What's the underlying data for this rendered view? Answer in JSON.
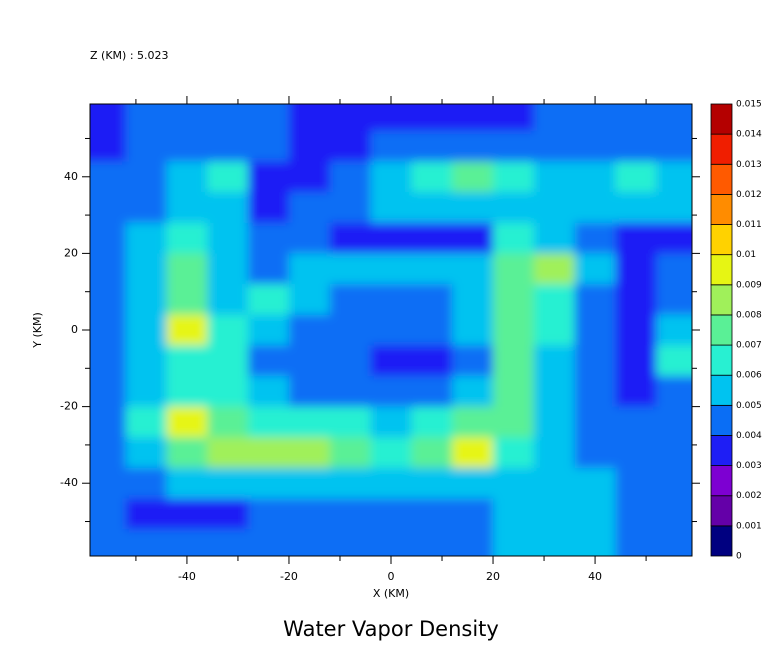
{
  "chart_data": {
    "type": "contour",
    "title": "Water Vapor Density",
    "annotation": "Z (KM) : 5.023",
    "xlabel": "X (KM)",
    "ylabel": "Y (KM)",
    "xlim": [
      -59,
      59
    ],
    "ylim": [
      -59,
      59
    ],
    "xticks": [
      -40,
      -20,
      0,
      20,
      40
    ],
    "yticks": [
      -40,
      -20,
      0,
      20,
      40
    ],
    "xminorticks": [
      -50,
      -30,
      -10,
      10,
      30,
      50
    ],
    "yminorticks": [
      -50,
      -30,
      -10,
      10,
      30,
      50
    ],
    "x": [
      -56,
      -48,
      -40,
      -32,
      -24,
      -16,
      -8,
      0,
      8,
      16,
      24,
      32,
      40,
      48,
      56
    ],
    "y": [
      56,
      48,
      40,
      32,
      24,
      16,
      8,
      0,
      -8,
      -16,
      -24,
      -32,
      -40,
      -48,
      -56
    ],
    "z": [
      [
        0.0035,
        0.0045,
        0.0045,
        0.0045,
        0.0045,
        0.0035,
        0.0035,
        0.0035,
        0.0035,
        0.0035,
        0.0035,
        0.0045,
        0.0045,
        0.0045,
        0.0045
      ],
      [
        0.0035,
        0.0045,
        0.0045,
        0.0045,
        0.0045,
        0.0035,
        0.0035,
        0.0045,
        0.0045,
        0.0045,
        0.0045,
        0.0045,
        0.0045,
        0.0045,
        0.0045
      ],
      [
        0.0045,
        0.0045,
        0.0055,
        0.0065,
        0.0035,
        0.0035,
        0.0045,
        0.0055,
        0.0065,
        0.0075,
        0.0065,
        0.0055,
        0.0055,
        0.0065,
        0.0055
      ],
      [
        0.0045,
        0.0045,
        0.0055,
        0.0055,
        0.0035,
        0.0045,
        0.0045,
        0.0055,
        0.0055,
        0.0055,
        0.0055,
        0.0055,
        0.0055,
        0.0055,
        0.0055
      ],
      [
        0.0045,
        0.0055,
        0.0065,
        0.0055,
        0.0045,
        0.0045,
        0.0035,
        0.0035,
        0.0035,
        0.0035,
        0.0065,
        0.0055,
        0.0045,
        0.0035,
        0.0035
      ],
      [
        0.0045,
        0.0055,
        0.0075,
        0.0055,
        0.0045,
        0.0055,
        0.0055,
        0.0055,
        0.0055,
        0.0055,
        0.0075,
        0.0085,
        0.0055,
        0.0035,
        0.0045
      ],
      [
        0.0045,
        0.0055,
        0.0075,
        0.0055,
        0.0065,
        0.0055,
        0.0045,
        0.0045,
        0.0045,
        0.0055,
        0.0075,
        0.0065,
        0.0045,
        0.0035,
        0.0045
      ],
      [
        0.0045,
        0.0055,
        0.0095,
        0.0065,
        0.0055,
        0.0045,
        0.0045,
        0.0045,
        0.0045,
        0.0055,
        0.0075,
        0.0065,
        0.0045,
        0.0035,
        0.0055
      ],
      [
        0.0045,
        0.0055,
        0.0065,
        0.0065,
        0.0045,
        0.0045,
        0.0045,
        0.0035,
        0.0035,
        0.0045,
        0.0075,
        0.0055,
        0.0045,
        0.0035,
        0.0065
      ],
      [
        0.0045,
        0.0055,
        0.0065,
        0.0065,
        0.0055,
        0.0045,
        0.0045,
        0.0045,
        0.0045,
        0.0055,
        0.0075,
        0.0055,
        0.0045,
        0.0035,
        0.0045
      ],
      [
        0.0045,
        0.0065,
        0.0095,
        0.0075,
        0.0065,
        0.0065,
        0.0065,
        0.0055,
        0.0065,
        0.0075,
        0.0075,
        0.0055,
        0.0045,
        0.0045,
        0.0045
      ],
      [
        0.0045,
        0.0055,
        0.0075,
        0.0085,
        0.0085,
        0.0085,
        0.0075,
        0.0065,
        0.0075,
        0.0095,
        0.0065,
        0.0055,
        0.0045,
        0.0045,
        0.0045
      ],
      [
        0.0045,
        0.0045,
        0.0055,
        0.0055,
        0.0055,
        0.0055,
        0.0055,
        0.0055,
        0.0055,
        0.0055,
        0.0055,
        0.0055,
        0.0055,
        0.0045,
        0.0045
      ],
      [
        0.0045,
        0.0035,
        0.0035,
        0.0035,
        0.0045,
        0.0045,
        0.0045,
        0.0045,
        0.0045,
        0.0045,
        0.0055,
        0.0055,
        0.0055,
        0.0045,
        0.0045
      ],
      [
        0.0045,
        0.0045,
        0.0045,
        0.0045,
        0.0045,
        0.0045,
        0.0045,
        0.0045,
        0.0045,
        0.0045,
        0.0055,
        0.0055,
        0.0055,
        0.0045,
        0.0045
      ]
    ],
    "levels": [
      0,
      0.001,
      0.002,
      0.003,
      0.004,
      0.005,
      0.006,
      0.007,
      0.008,
      0.009,
      0.01,
      0.011,
      0.012,
      0.013,
      0.014,
      0.015
    ],
    "colors": [
      "#000080",
      "#6400a8",
      "#7d00d2",
      "#1e1ef5",
      "#0a6ef5",
      "#00c3f0",
      "#28f0d2",
      "#5af096",
      "#a0f05a",
      "#e6f514",
      "#ffd200",
      "#ff8c00",
      "#ff5a00",
      "#f01e00",
      "#b40000"
    ]
  }
}
